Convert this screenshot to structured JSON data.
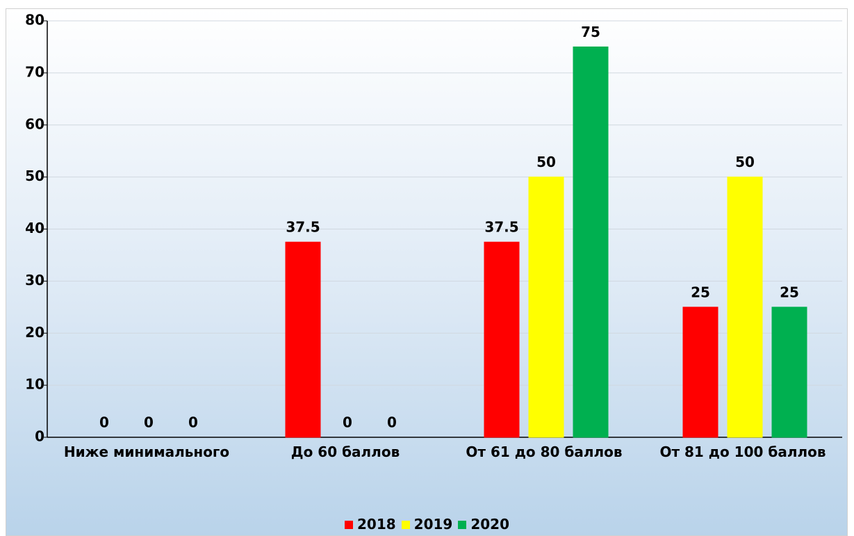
{
  "chart_data": {
    "type": "bar",
    "categories": [
      "Ниже минимального",
      "До 60 баллов",
      "От 61 до 80 баллов",
      "От 81 до 100 баллов"
    ],
    "series": [
      {
        "name": "2018",
        "color": "#ff0000",
        "values": [
          0,
          37.5,
          37.5,
          25
        ]
      },
      {
        "name": "2019",
        "color": "#ffff00",
        "values": [
          0,
          0,
          50,
          50
        ]
      },
      {
        "name": "2020",
        "color": "#00b050",
        "values": [
          0,
          0,
          75,
          25
        ]
      }
    ],
    "ylim": [
      0,
      80
    ],
    "yticks": [
      0,
      10,
      20,
      30,
      40,
      50,
      60,
      70,
      80
    ],
    "grid": true,
    "legend": "bottom"
  }
}
